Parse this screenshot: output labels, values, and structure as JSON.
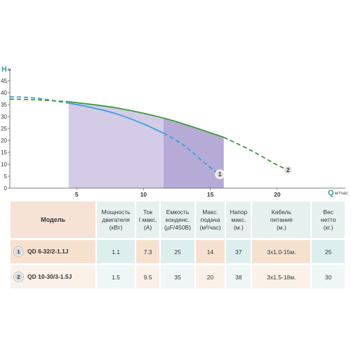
{
  "chart_data": {
    "type": "line",
    "y_axis": {
      "letter": "H",
      "unit": "м",
      "ticks": [
        0,
        5,
        10,
        15,
        20,
        25,
        30,
        35,
        40,
        45
      ],
      "range": [
        0,
        45
      ]
    },
    "x_axis": {
      "letter": "Q",
      "unit": "м³/час",
      "ticks": [
        5,
        10,
        15,
        20
      ],
      "range": [
        0,
        25
      ]
    },
    "grid": false,
    "series": [
      {
        "name": "1",
        "color": "#3a9fdc",
        "solid": [
          [
            4.4,
            35.6
          ],
          [
            6,
            33.9
          ],
          [
            8,
            31.1
          ],
          [
            10,
            26.9
          ],
          [
            11.5,
            23.0
          ]
        ],
        "dashed_left": [
          [
            0,
            38.3
          ],
          [
            2,
            37.7
          ],
          [
            4.4,
            35.6
          ]
        ],
        "dashed_right": [
          [
            11.5,
            23.0
          ],
          [
            13,
            18.0
          ],
          [
            14.5,
            10.9
          ],
          [
            15.5,
            6.4
          ]
        ],
        "shaded_range": [
          11.5,
          15.5
        ]
      },
      {
        "name": "2",
        "color": "#3c9a3c",
        "solid": [
          [
            4.4,
            36.2
          ],
          [
            8,
            33.6
          ],
          [
            12,
            28.6
          ],
          [
            16,
            21.3
          ]
        ],
        "dashed_left": [
          [
            0,
            37.3
          ],
          [
            2,
            37.0
          ],
          [
            4.4,
            36.2
          ]
        ],
        "dashed_right": [
          [
            16,
            21.3
          ],
          [
            18,
            15.9
          ],
          [
            20,
            9.7
          ],
          [
            20.6,
            8.2
          ]
        ],
        "shaded_range": [
          4.4,
          16
        ]
      }
    ],
    "marker_labels": [
      "1",
      "2"
    ]
  },
  "table": {
    "headers": {
      "model": "Модель",
      "power": [
        "Мощность",
        "двигателя",
        "(кВт)"
      ],
      "current": [
        "Ток",
        "I макс.",
        "(А)"
      ],
      "capacitor": [
        "Емкость",
        "конденс.",
        "(μF/450В)"
      ],
      "flow": [
        "Макс.",
        "подача",
        "(м³/час)"
      ],
      "head": [
        "Напор",
        "макс.",
        "(м.)"
      ],
      "cable": [
        "Кабель",
        "питания",
        "(м.)"
      ],
      "weight": [
        "Вес",
        "нетто",
        "(кг.)"
      ]
    },
    "rows": [
      {
        "num": "1",
        "model": "QD 6-32/2-1.1J",
        "power": "1.1",
        "current": "7.3",
        "capacitor": "25",
        "flow": "14",
        "head": "37",
        "cable": "3х1.0-15м.",
        "weight": "25"
      },
      {
        "num": "2",
        "model": "QD 10-30/3-1.5J",
        "power": "1.5",
        "current": "9.5",
        "capacitor": "35",
        "flow": "20",
        "head": "38",
        "cable": "3х1.5-18м.",
        "weight": "30"
      }
    ]
  },
  "colors": {
    "shade_light": "#cdc3e3",
    "shade_dark": "#a99ccf",
    "axis": "#555555"
  }
}
